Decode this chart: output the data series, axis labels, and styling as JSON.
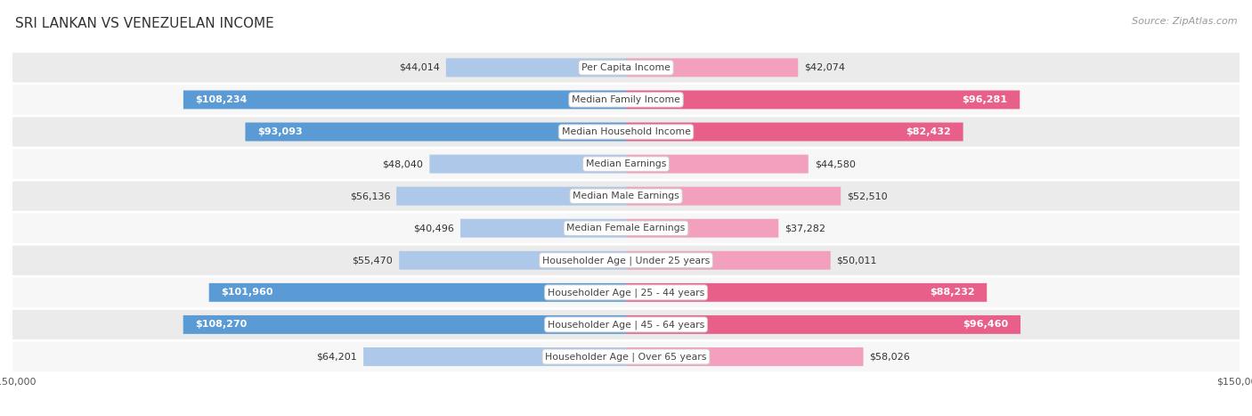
{
  "title": "SRI LANKAN VS VENEZUELAN INCOME",
  "source": "Source: ZipAtlas.com",
  "categories": [
    "Per Capita Income",
    "Median Family Income",
    "Median Household Income",
    "Median Earnings",
    "Median Male Earnings",
    "Median Female Earnings",
    "Householder Age | Under 25 years",
    "Householder Age | 25 - 44 years",
    "Householder Age | 45 - 64 years",
    "Householder Age | Over 65 years"
  ],
  "sri_lankan": [
    44014,
    108234,
    93093,
    48040,
    56136,
    40496,
    55470,
    101960,
    108270,
    64201
  ],
  "venezuelan": [
    42074,
    96281,
    82432,
    44580,
    52510,
    37282,
    50011,
    88232,
    96460,
    58026
  ],
  "sri_lankan_labels": [
    "$44,014",
    "$108,234",
    "$93,093",
    "$48,040",
    "$56,136",
    "$40,496",
    "$55,470",
    "$101,960",
    "$108,270",
    "$64,201"
  ],
  "venezuelan_labels": [
    "$42,074",
    "$96,281",
    "$82,432",
    "$44,580",
    "$52,510",
    "$37,282",
    "$50,011",
    "$88,232",
    "$96,460",
    "$58,026"
  ],
  "max_value": 150000,
  "sri_lankan_color_light": "#adc8e8",
  "sri_lankan_color_dark": "#5b9bd5",
  "venezuelan_color_light": "#f2a0be",
  "venezuelan_color_dark": "#e8608a",
  "label_dark_threshold": 80000,
  "bar_height": 0.58,
  "row_bg_color": "#ebebeb",
  "row_bg_color2": "#f7f7f7",
  "title_fontsize": 11,
  "source_fontsize": 8,
  "label_fontsize": 8,
  "category_fontsize": 7.8,
  "legend_fontsize": 8.5,
  "axis_label_fontsize": 8
}
